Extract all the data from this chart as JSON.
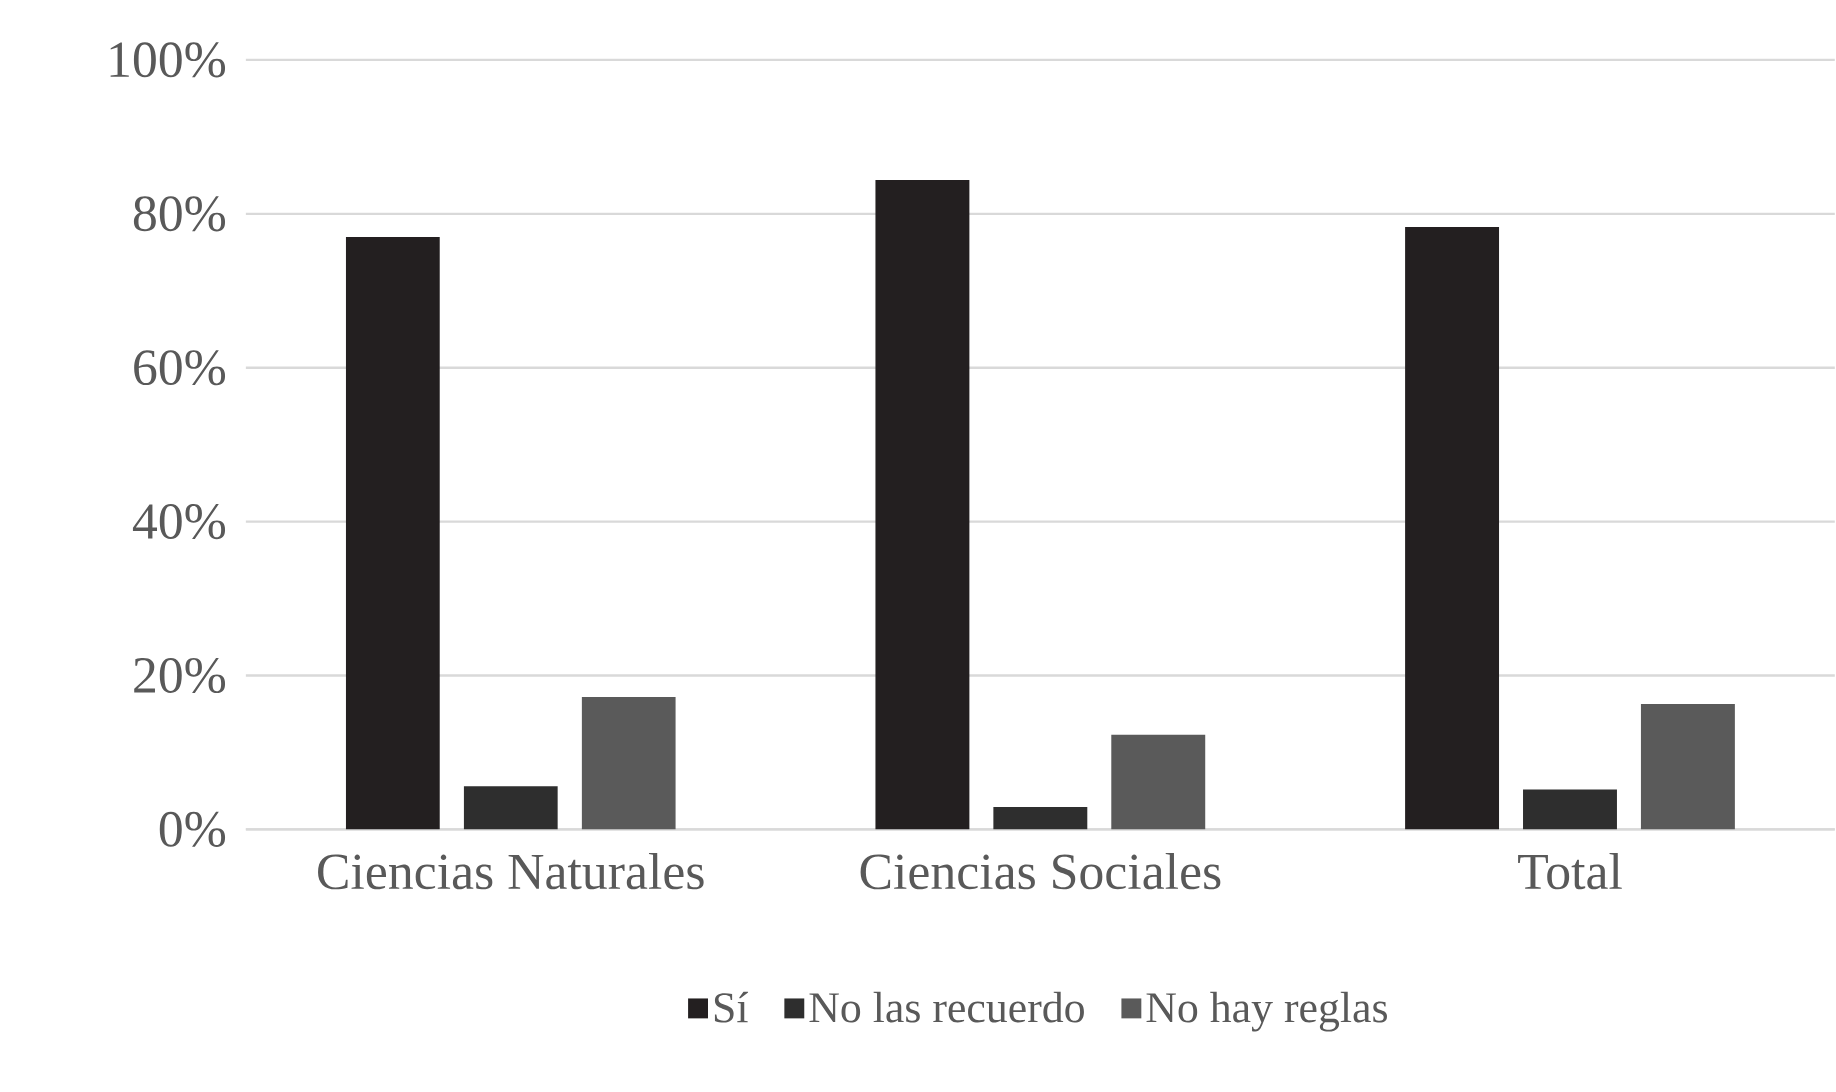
{
  "chart_data": {
    "type": "bar",
    "categories": [
      "Ciencias Naturales",
      "Ciencias Sociales",
      "Total"
    ],
    "series": [
      {
        "name": "Sí",
        "color": "#231f20",
        "values": [
          77,
          84.4,
          78.3
        ]
      },
      {
        "name": "No las recuerdo",
        "color": "#2e2e2e",
        "values": [
          5.6,
          2.9,
          5.2
        ]
      },
      {
        "name": "No hay reglas",
        "color": "#5a5a5a",
        "values": [
          17.2,
          12.3,
          16.3
        ]
      }
    ],
    "ylim": [
      0,
      100
    ],
    "yticks": [
      {
        "value": 0,
        "label": "0%"
      },
      {
        "value": 20,
        "label": "20%"
      },
      {
        "value": 40,
        "label": "40%"
      },
      {
        "value": 60,
        "label": "60%"
      },
      {
        "value": 80,
        "label": "80%"
      },
      {
        "value": 100,
        "label": "100%"
      }
    ],
    "grid": "y",
    "legend": "bottom"
  }
}
